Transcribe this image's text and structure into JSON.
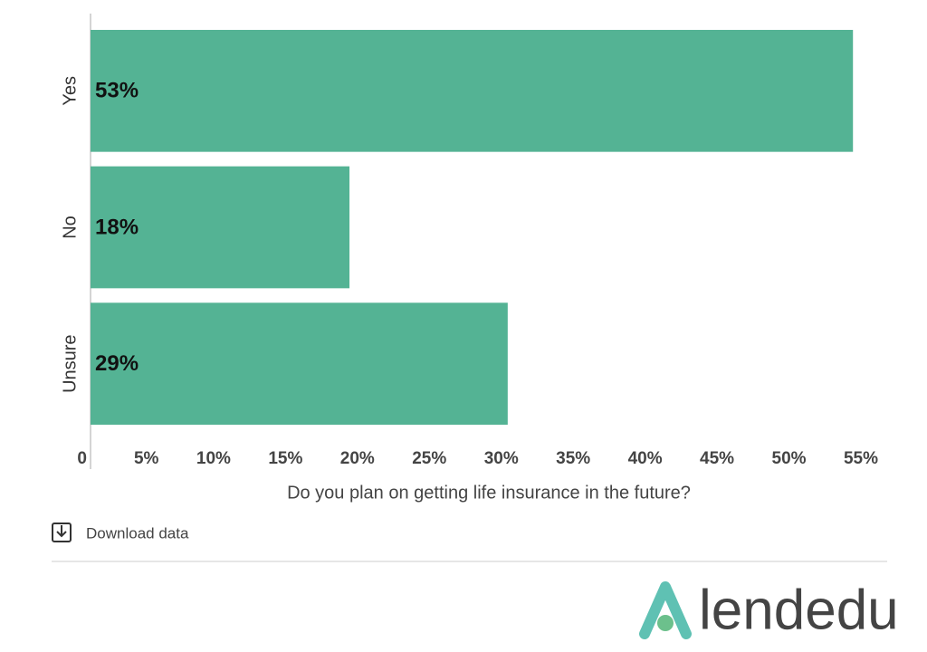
{
  "chart_data": {
    "type": "bar",
    "orientation": "horizontal",
    "categories": [
      "Yes",
      "No",
      "Unsure"
    ],
    "values": [
      53,
      18,
      29
    ],
    "value_labels": [
      "53%",
      "18%",
      "29%"
    ],
    "color": "#54b394",
    "xlabel": "Do you plan on getting life insurance in the future?",
    "xlim": [
      0,
      55
    ],
    "xticks": [
      0,
      {
        "value": 5,
        "label": "5%"
      },
      {
        "value": 10,
        "label": "10%"
      },
      {
        "value": 15,
        "label": "15%"
      },
      {
        "value": 20,
        "label": "20%"
      },
      {
        "value": 25,
        "label": "25%"
      },
      {
        "value": 30,
        "label": "30%"
      },
      {
        "value": 35,
        "label": "35%"
      },
      {
        "value": 40,
        "label": "40%"
      },
      {
        "value": 45,
        "label": "45%"
      },
      {
        "value": 50,
        "label": "50%"
      },
      {
        "value": 55,
        "label": "55%"
      }
    ],
    "grid": false
  },
  "download_label": "Download data",
  "logo": "lendedu"
}
